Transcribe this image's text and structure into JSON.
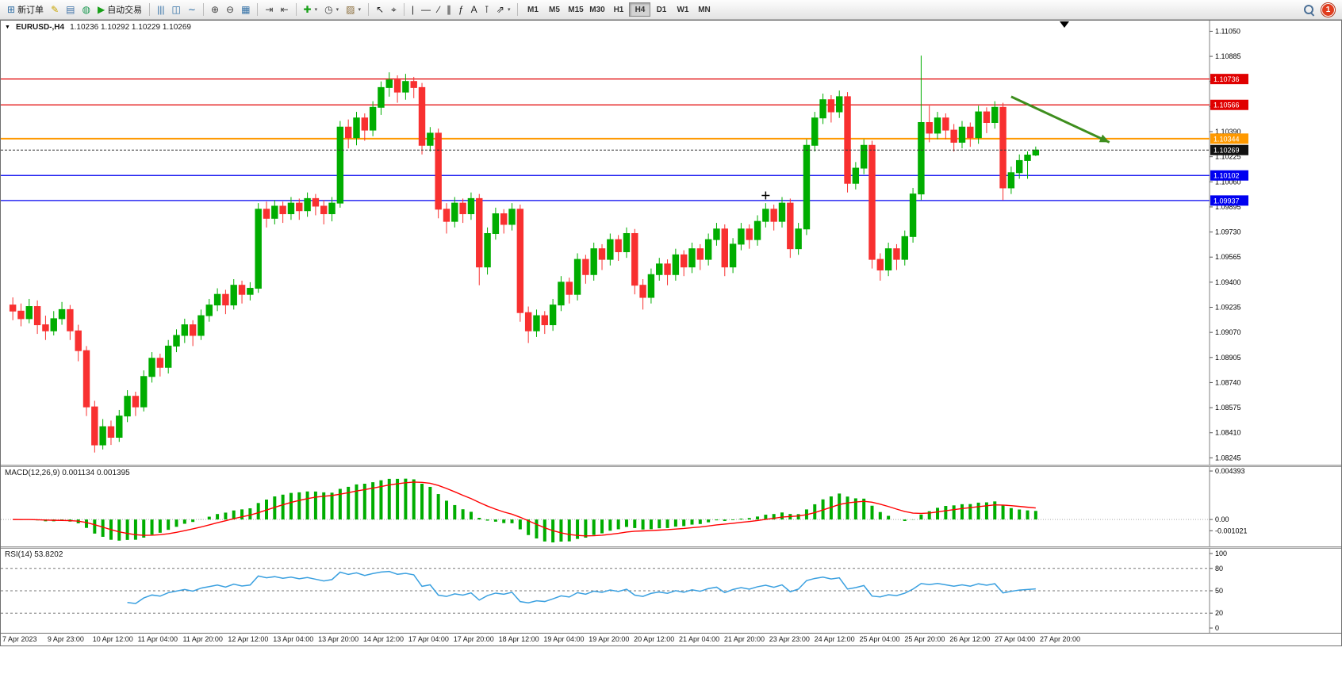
{
  "toolbar": {
    "new_order": "新订单",
    "auto_trading": "自动交易",
    "notification_count": "1",
    "timeframes": [
      "M1",
      "M5",
      "M15",
      "M30",
      "H1",
      "H4",
      "D1",
      "W1",
      "MN"
    ],
    "active_timeframe": "H4",
    "buttons": [
      {
        "name": "new-order",
        "glyph": "⊞",
        "label": "新订单",
        "color": "#2e6da4"
      },
      {
        "name": "metaeditor",
        "glyph": "✎",
        "color": "#c8a400"
      },
      {
        "name": "market-depth",
        "glyph": "▤",
        "color": "#3a6ea5"
      },
      {
        "name": "community",
        "glyph": "◍",
        "color": "#1a9850"
      },
      {
        "name": "auto-trading",
        "glyph": "▶",
        "label": "自动交易",
        "color": "#18a018"
      },
      {
        "sep": true
      },
      {
        "name": "bar-chart",
        "glyph": "|||",
        "color": "#2e6da4"
      },
      {
        "name": "candlestick-chart",
        "glyph": "◫",
        "color": "#2e6da4"
      },
      {
        "name": "line-chart",
        "glyph": "∼",
        "color": "#2e6da4"
      },
      {
        "sep": true
      },
      {
        "name": "zoom-in",
        "glyph": "⊕",
        "color": "#444444"
      },
      {
        "name": "zoom-out",
        "glyph": "⊖",
        "color": "#444444"
      },
      {
        "name": "tile-windows",
        "glyph": "▦",
        "color": "#2e6da4"
      },
      {
        "sep": true
      },
      {
        "name": "auto-scroll",
        "glyph": "⇥",
        "color": "#444444"
      },
      {
        "name": "chart-shift",
        "glyph": "⇤",
        "color": "#444444"
      },
      {
        "sep": true
      },
      {
        "name": "indicators",
        "glyph": "✚",
        "color": "#18a018",
        "caret": true
      },
      {
        "name": "periods",
        "glyph": "◷",
        "color": "#444444",
        "caret": true
      },
      {
        "name": "templates",
        "glyph": "▨",
        "color": "#8a6d3b",
        "caret": true
      },
      {
        "sep": true
      },
      {
        "name": "cursor",
        "glyph": "↖",
        "color": "#222222"
      },
      {
        "name": "crosshair",
        "glyph": "⌖",
        "color": "#222222"
      },
      {
        "sep": true
      },
      {
        "name": "vertical-line",
        "glyph": "|",
        "color": "#222222"
      },
      {
        "name": "horizontal-line",
        "glyph": "—",
        "color": "#222222"
      },
      {
        "name": "trendline",
        "glyph": "∕",
        "color": "#222222"
      },
      {
        "name": "equidistant-channel",
        "glyph": "∥",
        "color": "#222222"
      },
      {
        "name": "fibonacci",
        "glyph": "ƒ",
        "color": "#222222"
      },
      {
        "name": "text",
        "glyph": "A",
        "color": "#222222"
      },
      {
        "name": "text-label",
        "glyph": "⊺",
        "color": "#222222"
      },
      {
        "name": "arrows",
        "glyph": "⇗",
        "color": "#222222",
        "caret": true
      }
    ]
  },
  "chart": {
    "dropdown_icon": "▼",
    "symbol_period": "EURUSD-,H4",
    "ohlc": "1.10236 1.10292 1.10229 1.10269"
  },
  "chart_data": {
    "type": "candlestick",
    "title": "EURUSD-,H4",
    "symbol": "EURUSD-",
    "timeframe": "H4",
    "ylim": [
      1.082,
      1.1112
    ],
    "price_axis_ticks": [
      "1.11050",
      "1.10885",
      "1.10720",
      "1.10555",
      "1.10390",
      "1.10225",
      "1.10060",
      "1.09895",
      "1.09730",
      "1.09565",
      "1.09400",
      "1.09235",
      "1.09070",
      "1.08905",
      "1.08740",
      "1.08575",
      "1.08410",
      "1.08245"
    ],
    "time_labels": [
      "7 Apr 2023",
      "9 Apr 23:00",
      "10 Apr 12:00",
      "11 Apr 04:00",
      "11 Apr 20:00",
      "12 Apr 12:00",
      "13 Apr 04:00",
      "13 Apr 20:00",
      "14 Apr 12:00",
      "17 Apr 04:00",
      "17 Apr 20:00",
      "18 Apr 12:00",
      "19 Apr 04:00",
      "19 Apr 20:00",
      "20 Apr 12:00",
      "21 Apr 04:00",
      "21 Apr 20:00",
      "23 Apr 23:00",
      "24 Apr 12:00",
      "25 Apr 04:00",
      "25 Apr 20:00",
      "26 Apr 12:00",
      "27 Apr 04:00",
      "27 Apr 20:00"
    ],
    "hlines": [
      {
        "price": 1.10736,
        "label": "1.10736",
        "color": "#e00000",
        "width": 1.2
      },
      {
        "price": 1.10566,
        "label": "1.10566",
        "color": "#e00000",
        "width": 1.2
      },
      {
        "price": 1.10344,
        "label": "1.10344",
        "color": "#ff9900",
        "width": 2
      },
      {
        "price": 1.10102,
        "label": "1.10102",
        "color": "#0000f0",
        "width": 1.2
      },
      {
        "price": 1.09937,
        "label": "1.09937",
        "color": "#0000f0",
        "width": 1.2
      }
    ],
    "current_price": {
      "value": 1.10269,
      "label": "1.10269"
    },
    "annotations": [
      {
        "type": "arrow",
        "from_bar": 122,
        "from_price": 1.1062,
        "to_bar": 134,
        "to_price": 1.1032,
        "color": "#3e8e1e"
      },
      {
        "type": "cross",
        "bar": 92,
        "price": 1.0997,
        "color": "#000000"
      }
    ],
    "colors": {
      "up": "#00ad00",
      "down": "#f83030",
      "macd_hist": "#00ad00",
      "macd_signal": "#ff0000",
      "rsi_line": "#3aa0e0"
    },
    "macd": {
      "label": "MACD(12,26,9) 0.001134 0.001395",
      "params": [
        12,
        26,
        9
      ],
      "axis_ticks": [
        "0.004393",
        "0.00",
        "-0.001021"
      ]
    },
    "rsi": {
      "label": "RSI(14) 53.8202",
      "period": 14,
      "value": 53.8202,
      "levels": [
        80,
        50,
        20
      ],
      "axis_ticks": [
        "100",
        "80",
        "50",
        "20",
        "0"
      ]
    },
    "candles": [
      [
        1.0925,
        1.093,
        1.0915,
        1.0921
      ],
      [
        1.0921,
        1.0926,
        1.0911,
        1.0916
      ],
      [
        1.0916,
        1.0929,
        1.0913,
        1.0924
      ],
      [
        1.0924,
        1.0928,
        1.0906,
        1.0912
      ],
      [
        1.0912,
        1.0918,
        1.0902,
        1.0908
      ],
      [
        1.0908,
        1.0921,
        1.0905,
        1.0916
      ],
      [
        1.0916,
        1.0927,
        1.0912,
        1.0922
      ],
      [
        1.0922,
        1.0925,
        1.0902,
        1.0908
      ],
      [
        1.0908,
        1.0912,
        1.0888,
        1.0895
      ],
      [
        1.0895,
        1.0898,
        1.0852,
        1.0858
      ],
      [
        1.0858,
        1.0862,
        1.0828,
        1.0833
      ],
      [
        1.0833,
        1.085,
        1.083,
        1.0845
      ],
      [
        1.0845,
        1.0849,
        1.0833,
        1.0838
      ],
      [
        1.0838,
        1.0856,
        1.0835,
        1.0852
      ],
      [
        1.0852,
        1.0869,
        1.0848,
        1.0865
      ],
      [
        1.0865,
        1.0868,
        1.0852,
        1.0858
      ],
      [
        1.0858,
        1.0882,
        1.0855,
        1.0878
      ],
      [
        1.0878,
        1.0894,
        1.0874,
        1.089
      ],
      [
        1.089,
        1.0893,
        1.0878,
        1.0884
      ],
      [
        1.0884,
        1.0902,
        1.088,
        1.0898
      ],
      [
        1.0898,
        1.0909,
        1.0894,
        1.0905
      ],
      [
        1.0905,
        1.0916,
        1.09,
        1.0912
      ],
      [
        1.0912,
        1.0915,
        1.0898,
        1.0905
      ],
      [
        1.0905,
        1.0922,
        1.0902,
        1.0918
      ],
      [
        1.0918,
        1.0929,
        1.0914,
        1.0925
      ],
      [
        1.0925,
        1.0936,
        1.0921,
        1.0932
      ],
      [
        1.0932,
        1.0935,
        1.0919,
        1.0925
      ],
      [
        1.0925,
        1.0942,
        1.0922,
        1.0938
      ],
      [
        1.0938,
        1.0941,
        1.0926,
        1.0932
      ],
      [
        1.0932,
        1.094,
        1.0928,
        1.0936
      ],
      [
        1.0936,
        1.0992,
        1.0933,
        1.0988
      ],
      [
        1.0988,
        1.0993,
        1.0976,
        1.0982
      ],
      [
        1.0982,
        1.0994,
        1.0978,
        1.099
      ],
      [
        1.099,
        1.0993,
        1.0979,
        1.0985
      ],
      [
        1.0985,
        1.0996,
        1.0981,
        1.0992
      ],
      [
        1.0992,
        1.0995,
        1.0981,
        1.0987
      ],
      [
        1.0987,
        1.0999,
        1.0983,
        1.0995
      ],
      [
        1.0995,
        1.0998,
        1.0984,
        1.099
      ],
      [
        1.099,
        1.0994,
        1.0978,
        1.0985
      ],
      [
        1.0985,
        1.0996,
        1.098,
        1.0992
      ],
      [
        1.0992,
        1.1046,
        1.0989,
        1.1042
      ],
      [
        1.1042,
        1.1047,
        1.1028,
        1.1035
      ],
      [
        1.1035,
        1.1052,
        1.103,
        1.1048
      ],
      [
        1.1048,
        1.1051,
        1.1033,
        1.104
      ],
      [
        1.104,
        1.1059,
        1.1036,
        1.1055
      ],
      [
        1.1055,
        1.1072,
        1.105,
        1.1068
      ],
      [
        1.1068,
        1.1078,
        1.1062,
        1.1073
      ],
      [
        1.1073,
        1.1076,
        1.1058,
        1.1065
      ],
      [
        1.1065,
        1.1077,
        1.106,
        1.1072
      ],
      [
        1.1072,
        1.1075,
        1.1061,
        1.1068
      ],
      [
        1.1068,
        1.1071,
        1.1024,
        1.103
      ],
      [
        1.103,
        1.1042,
        1.1026,
        1.1038
      ],
      [
        1.1038,
        1.1041,
        1.0982,
        1.0988
      ],
      [
        1.0988,
        1.0992,
        1.0972,
        1.098
      ],
      [
        1.098,
        1.0996,
        1.0976,
        1.0992
      ],
      [
        1.0992,
        1.0995,
        1.0979,
        1.0985
      ],
      [
        1.0985,
        1.0999,
        1.0981,
        1.0995
      ],
      [
        1.0995,
        1.0998,
        1.0938,
        1.095
      ],
      [
        1.095,
        1.0976,
        1.0945,
        1.0972
      ],
      [
        1.0972,
        1.0989,
        1.0968,
        1.0985
      ],
      [
        1.0985,
        1.0988,
        1.0972,
        1.0978
      ],
      [
        1.0978,
        1.0992,
        1.0974,
        1.0988
      ],
      [
        1.0988,
        1.0991,
        1.0914,
        1.092
      ],
      [
        1.092,
        1.0924,
        1.09,
        1.0908
      ],
      [
        1.0908,
        1.0922,
        1.0904,
        1.0918
      ],
      [
        1.0918,
        1.0921,
        1.0906,
        1.0912
      ],
      [
        1.0912,
        1.0929,
        1.0908,
        1.0925
      ],
      [
        1.0925,
        1.0944,
        1.0921,
        1.094
      ],
      [
        1.094,
        1.0943,
        1.0926,
        1.0932
      ],
      [
        1.0932,
        1.0959,
        1.0928,
        1.0955
      ],
      [
        1.0955,
        1.0958,
        1.0939,
        1.0945
      ],
      [
        1.0945,
        1.0966,
        1.0941,
        1.0962
      ],
      [
        1.0962,
        1.0965,
        1.0948,
        1.0955
      ],
      [
        1.0955,
        1.0972,
        1.0951,
        1.0968
      ],
      [
        1.0968,
        1.0971,
        1.0954,
        1.096
      ],
      [
        1.096,
        1.0976,
        1.0956,
        1.0972
      ],
      [
        1.0972,
        1.0975,
        1.0932,
        1.0938
      ],
      [
        1.0938,
        1.0942,
        1.0922,
        1.093
      ],
      [
        1.093,
        1.0949,
        1.0926,
        1.0945
      ],
      [
        1.0945,
        1.0956,
        1.0941,
        1.0952
      ],
      [
        1.0952,
        1.0955,
        1.0938,
        1.0945
      ],
      [
        1.0945,
        1.0962,
        1.0941,
        1.0958
      ],
      [
        1.0958,
        1.0961,
        1.0944,
        1.095
      ],
      [
        1.095,
        1.0966,
        1.0946,
        1.0962
      ],
      [
        1.0962,
        1.0965,
        1.0948,
        1.0955
      ],
      [
        1.0955,
        1.0972,
        1.0951,
        1.0968
      ],
      [
        1.0968,
        1.0979,
        1.0964,
        1.0975
      ],
      [
        1.0975,
        1.0978,
        1.0944,
        1.095
      ],
      [
        1.095,
        1.0969,
        1.0946,
        1.0965
      ],
      [
        1.0965,
        1.0979,
        1.0961,
        1.0975
      ],
      [
        1.0975,
        1.0978,
        1.0962,
        1.0968
      ],
      [
        1.0968,
        1.0984,
        1.0964,
        1.098
      ],
      [
        1.098,
        1.0992,
        1.0976,
        1.0988
      ],
      [
        1.0988,
        1.0991,
        1.0974,
        1.098
      ],
      [
        1.098,
        1.0996,
        1.0976,
        1.0992
      ],
      [
        1.0992,
        1.0995,
        1.0956,
        1.0962
      ],
      [
        1.0962,
        1.0979,
        1.0958,
        1.0975
      ],
      [
        1.0975,
        1.1034,
        1.0971,
        1.103
      ],
      [
        1.103,
        1.1052,
        1.1026,
        1.1048
      ],
      [
        1.1048,
        1.1064,
        1.1044,
        1.106
      ],
      [
        1.106,
        1.1063,
        1.1045,
        1.1052
      ],
      [
        1.1052,
        1.1066,
        1.1048,
        1.1062
      ],
      [
        1.1062,
        1.1065,
        1.0999,
        1.1005
      ],
      [
        1.1005,
        1.1019,
        1.1001,
        1.1015
      ],
      [
        1.1015,
        1.1034,
        1.1011,
        1.103
      ],
      [
        1.103,
        1.1033,
        1.0949,
        1.0955
      ],
      [
        1.0955,
        1.0959,
        1.0941,
        1.0948
      ],
      [
        1.0948,
        1.0966,
        1.0944,
        1.0962
      ],
      [
        1.0962,
        1.0965,
        1.0948,
        1.0955
      ],
      [
        1.0955,
        1.0974,
        1.0951,
        1.097
      ],
      [
        1.097,
        1.1002,
        1.0966,
        1.0998
      ],
      [
        1.0998,
        1.1089,
        1.0994,
        1.1045
      ],
      [
        1.1045,
        1.1056,
        1.1032,
        1.1038
      ],
      [
        1.1038,
        1.1052,
        1.1034,
        1.1048
      ],
      [
        1.1048,
        1.1051,
        1.1034,
        1.104
      ],
      [
        1.104,
        1.1044,
        1.1026,
        1.1032
      ],
      [
        1.1032,
        1.1046,
        1.1028,
        1.1042
      ],
      [
        1.1042,
        1.1045,
        1.1029,
        1.1035
      ],
      [
        1.1035,
        1.1056,
        1.1031,
        1.1052
      ],
      [
        1.1052,
        1.1055,
        1.1038,
        1.1045
      ],
      [
        1.1045,
        1.1059,
        1.1041,
        1.1055
      ],
      [
        1.1055,
        1.1058,
        1.0994,
        1.1002
      ],
      [
        1.1002,
        1.1016,
        1.0998,
        1.1012
      ],
      [
        1.1012,
        1.1024,
        1.1008,
        1.102
      ],
      [
        1.102,
        1.1026,
        1.1008,
        1.10236
      ],
      [
        1.10236,
        1.10292,
        1.10229,
        1.10269
      ]
    ]
  }
}
